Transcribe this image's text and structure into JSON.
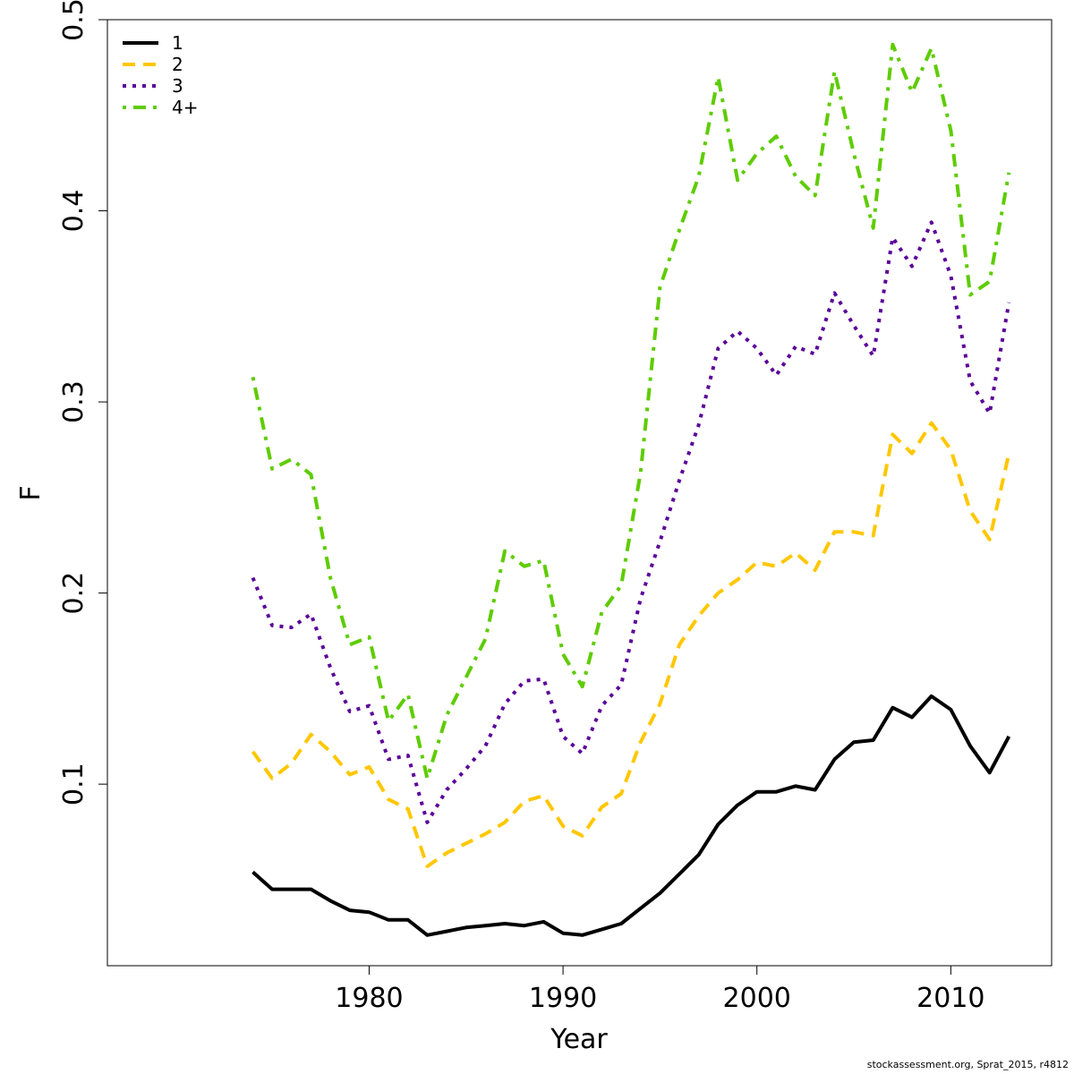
{
  "chart_data": {
    "type": "line",
    "xlabel": "Year",
    "ylabel": "F",
    "xlim": [
      1966.5,
      2015.2
    ],
    "ylim": [
      0.005,
      0.5
    ],
    "x_ticks": [
      1980,
      1990,
      2000,
      2010
    ],
    "x_tick_labels": [
      "1980",
      "1990",
      "2000",
      "2010"
    ],
    "y_ticks": [
      0.1,
      0.2,
      0.3,
      0.4,
      0.5
    ],
    "y_tick_labels": [
      "0.1",
      "0.2",
      "0.3",
      "0.4",
      "0.5"
    ],
    "grid": false,
    "legend_position": "top-left",
    "x": [
      1974,
      1975,
      1976,
      1977,
      1978,
      1979,
      1980,
      1981,
      1982,
      1983,
      1984,
      1985,
      1986,
      1987,
      1988,
      1989,
      1990,
      1991,
      1992,
      1993,
      1994,
      1995,
      1996,
      1997,
      1998,
      1999,
      2000,
      2001,
      2002,
      2003,
      2004,
      2005,
      2006,
      2007,
      2008,
      2009,
      2010,
      2011,
      2012,
      2013
    ],
    "series": [
      {
        "name": "1",
        "color": "#000000",
        "dash": "solid",
        "values": [
          0.054,
          0.045,
          0.045,
          0.045,
          0.039,
          0.034,
          0.033,
          0.029,
          0.029,
          0.021,
          0.023,
          0.025,
          0.026,
          0.027,
          0.026,
          0.028,
          0.022,
          0.021,
          0.024,
          0.027,
          0.035,
          0.043,
          0.053,
          0.063,
          0.079,
          0.089,
          0.096,
          0.096,
          0.099,
          0.097,
          0.113,
          0.122,
          0.123,
          0.14,
          0.135,
          0.146,
          0.139,
          0.12,
          0.106,
          0.125
        ]
      },
      {
        "name": "2",
        "color": "#FFC700",
        "dash": "dashed",
        "values": [
          0.117,
          0.103,
          0.111,
          0.126,
          0.117,
          0.105,
          0.109,
          0.092,
          0.087,
          0.057,
          0.064,
          0.069,
          0.074,
          0.08,
          0.091,
          0.094,
          0.078,
          0.073,
          0.088,
          0.095,
          0.122,
          0.142,
          0.173,
          0.188,
          0.2,
          0.207,
          0.216,
          0.214,
          0.221,
          0.212,
          0.232,
          0.232,
          0.23,
          0.283,
          0.273,
          0.289,
          0.275,
          0.243,
          0.228,
          0.273
        ]
      },
      {
        "name": "3",
        "color": "#5A0099",
        "dash": "dotted",
        "values": [
          0.208,
          0.183,
          0.182,
          0.189,
          0.161,
          0.138,
          0.141,
          0.113,
          0.115,
          0.08,
          0.097,
          0.108,
          0.12,
          0.142,
          0.154,
          0.155,
          0.125,
          0.116,
          0.141,
          0.152,
          0.197,
          0.227,
          0.259,
          0.288,
          0.328,
          0.337,
          0.328,
          0.314,
          0.329,
          0.325,
          0.357,
          0.34,
          0.324,
          0.386,
          0.371,
          0.394,
          0.366,
          0.311,
          0.294,
          0.352
        ]
      },
      {
        "name": "4+",
        "color": "#5ECC00",
        "dash": "dotdash",
        "values": [
          0.313,
          0.265,
          0.27,
          0.262,
          0.208,
          0.173,
          0.177,
          0.133,
          0.147,
          0.103,
          0.136,
          0.156,
          0.176,
          0.222,
          0.214,
          0.217,
          0.168,
          0.151,
          0.19,
          0.204,
          0.263,
          0.36,
          0.39,
          0.418,
          0.47,
          0.416,
          0.43,
          0.439,
          0.418,
          0.408,
          0.473,
          0.43,
          0.391,
          0.487,
          0.462,
          0.485,
          0.442,
          0.356,
          0.363,
          0.42
        ]
      }
    ]
  },
  "footer_text": "stockassessment.org, Sprat_2015, r4812"
}
